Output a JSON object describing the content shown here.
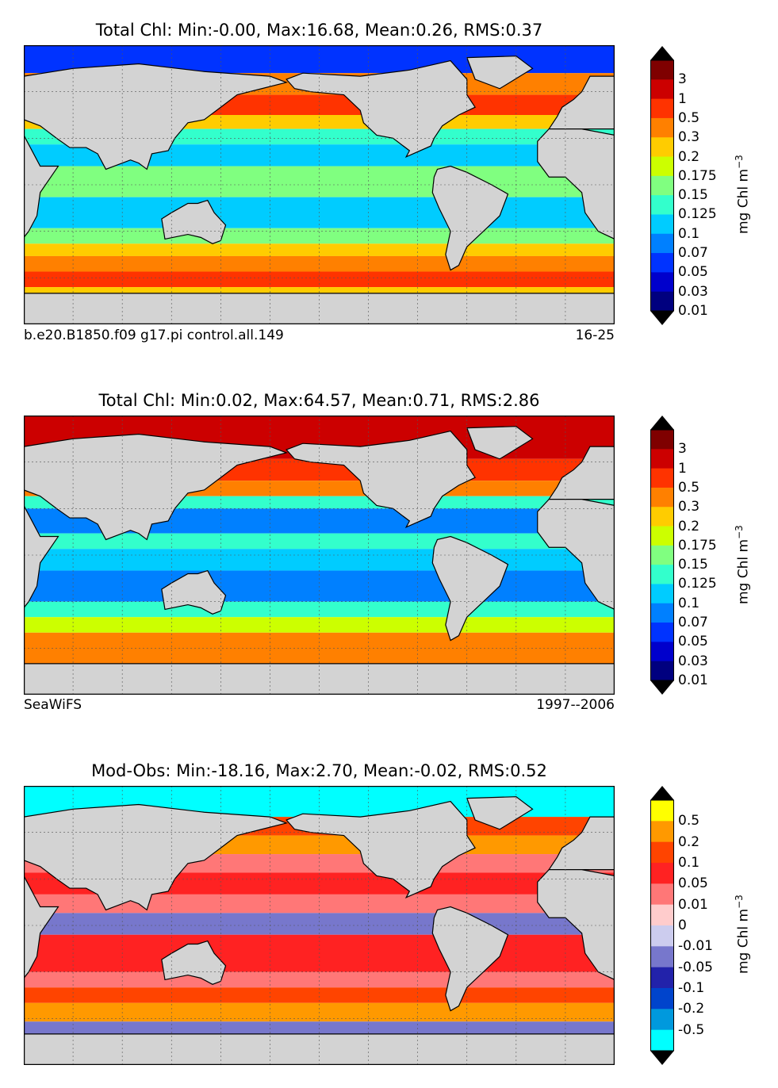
{
  "panels": [
    {
      "title": "Total Chl: Min:-0.00, Max:16.68, Mean:0.26, RMS:0.37",
      "footer_left": "b.e20.B1850.f09 g17.pi control.all.149",
      "footer_right": "16-25",
      "colorbar": {
        "label": "mg Chl m",
        "label_exponent": "−3",
        "ticks": [
          "3",
          "1",
          "0.5",
          "0.3",
          "0.2",
          "0.175",
          "0.15",
          "0.125",
          "0.1",
          "0.07",
          "0.05",
          "0.03",
          "0.01"
        ],
        "colors": [
          "#7f0000",
          "#cc0000",
          "#ff3300",
          "#ff8000",
          "#ffcc00",
          "#ccff00",
          "#80ff80",
          "#33ffcc",
          "#00ccff",
          "#0080ff",
          "#0033ff",
          "#0000cc",
          "#00007f"
        ],
        "extend_top": "#000000",
        "extend_bottom": "#000000"
      },
      "map": {
        "bands": [
          {
            "lat_from": 90,
            "lat_to": 72,
            "color": "#0033ff"
          },
          {
            "lat_from": 72,
            "lat_to": 58,
            "color": "#ff8000"
          },
          {
            "lat_from": 58,
            "lat_to": 45,
            "color": "#ff3300"
          },
          {
            "lat_from": 45,
            "lat_to": 36,
            "color": "#ffcc00"
          },
          {
            "lat_from": 36,
            "lat_to": 26,
            "color": "#33ffcc"
          },
          {
            "lat_from": 26,
            "lat_to": 12,
            "color": "#00ccff"
          },
          {
            "lat_from": 12,
            "lat_to": -8,
            "color": "#80ff80"
          },
          {
            "lat_from": -8,
            "lat_to": -28,
            "color": "#00ccff"
          },
          {
            "lat_from": -28,
            "lat_to": -38,
            "color": "#80ff80"
          },
          {
            "lat_from": -38,
            "lat_to": -46,
            "color": "#ffcc00"
          },
          {
            "lat_from": -46,
            "lat_to": -56,
            "color": "#ff8000"
          },
          {
            "lat_from": -56,
            "lat_to": -66,
            "color": "#ff3300"
          },
          {
            "lat_from": -66,
            "lat_to": -90,
            "color": "#ffcc00"
          }
        ]
      }
    },
    {
      "title": "Total Chl: Min:0.02, Max:64.57, Mean:0.71, RMS:2.86",
      "footer_left": "SeaWiFS",
      "footer_right": "1997--2006",
      "colorbar": {
        "label": "mg Chl m",
        "label_exponent": "−3",
        "ticks": [
          "3",
          "1",
          "0.5",
          "0.3",
          "0.2",
          "0.175",
          "0.15",
          "0.125",
          "0.1",
          "0.07",
          "0.05",
          "0.03",
          "0.01"
        ],
        "colors": [
          "#7f0000",
          "#cc0000",
          "#ff3300",
          "#ff8000",
          "#ffcc00",
          "#ccff00",
          "#80ff80",
          "#33ffcc",
          "#00ccff",
          "#0080ff",
          "#0033ff",
          "#0000cc",
          "#00007f"
        ],
        "extend_top": "#000000",
        "extend_bottom": "#000000"
      },
      "map": {
        "bands": [
          {
            "lat_from": 90,
            "lat_to": 62,
            "color": "#cc0000"
          },
          {
            "lat_from": 62,
            "lat_to": 48,
            "color": "#ff3300"
          },
          {
            "lat_from": 48,
            "lat_to": 38,
            "color": "#ff8000"
          },
          {
            "lat_from": 38,
            "lat_to": 30,
            "color": "#33ffcc"
          },
          {
            "lat_from": 30,
            "lat_to": 14,
            "color": "#0080ff"
          },
          {
            "lat_from": 14,
            "lat_to": 4,
            "color": "#33ffcc"
          },
          {
            "lat_from": 4,
            "lat_to": -10,
            "color": "#00ccff"
          },
          {
            "lat_from": -10,
            "lat_to": -30,
            "color": "#0080ff"
          },
          {
            "lat_from": -30,
            "lat_to": -40,
            "color": "#33ffcc"
          },
          {
            "lat_from": -40,
            "lat_to": -50,
            "color": "#ccff00"
          },
          {
            "lat_from": -50,
            "lat_to": -90,
            "color": "#ff8000"
          }
        ]
      }
    },
    {
      "title": "Mod-Obs: Min:-18.16, Max:2.70, Mean:-0.02, RMS:0.52",
      "footer_left": "",
      "footer_right": "",
      "colorbar": {
        "label": "mg Chl m",
        "label_exponent": "−3",
        "ticks": [
          "0.5",
          "0.2",
          "0.1",
          "0.05",
          "0.01",
          "0",
          "-0.01",
          "-0.05",
          "-0.1",
          "-0.2",
          "-0.5"
        ],
        "colors": [
          "#ffff00",
          "#ff9900",
          "#ff4400",
          "#ff2222",
          "#ff7777",
          "#ffcccc",
          "#ccccee",
          "#7777cc",
          "#2222aa",
          "#0044cc",
          "#0099dd",
          "#00ffff"
        ],
        "extend_top": "#000000",
        "extend_bottom": "#000000"
      },
      "map": {
        "bands": [
          {
            "lat_from": 90,
            "lat_to": 70,
            "color": "#00ffff"
          },
          {
            "lat_from": 70,
            "lat_to": 58,
            "color": "#ff4400"
          },
          {
            "lat_from": 58,
            "lat_to": 46,
            "color": "#ff9900"
          },
          {
            "lat_from": 46,
            "lat_to": 34,
            "color": "#ff7777"
          },
          {
            "lat_from": 34,
            "lat_to": 20,
            "color": "#ff2222"
          },
          {
            "lat_from": 20,
            "lat_to": 8,
            "color": "#ff7777"
          },
          {
            "lat_from": 8,
            "lat_to": -6,
            "color": "#7777cc"
          },
          {
            "lat_from": -6,
            "lat_to": -30,
            "color": "#ff2222"
          },
          {
            "lat_from": -30,
            "lat_to": -40,
            "color": "#ff7777"
          },
          {
            "lat_from": -40,
            "lat_to": -50,
            "color": "#ff4400"
          },
          {
            "lat_from": -50,
            "lat_to": -62,
            "color": "#ff9900"
          },
          {
            "lat_from": -62,
            "lat_to": -90,
            "color": "#7777cc"
          }
        ]
      }
    }
  ],
  "land_color": "#d3d3d3"
}
